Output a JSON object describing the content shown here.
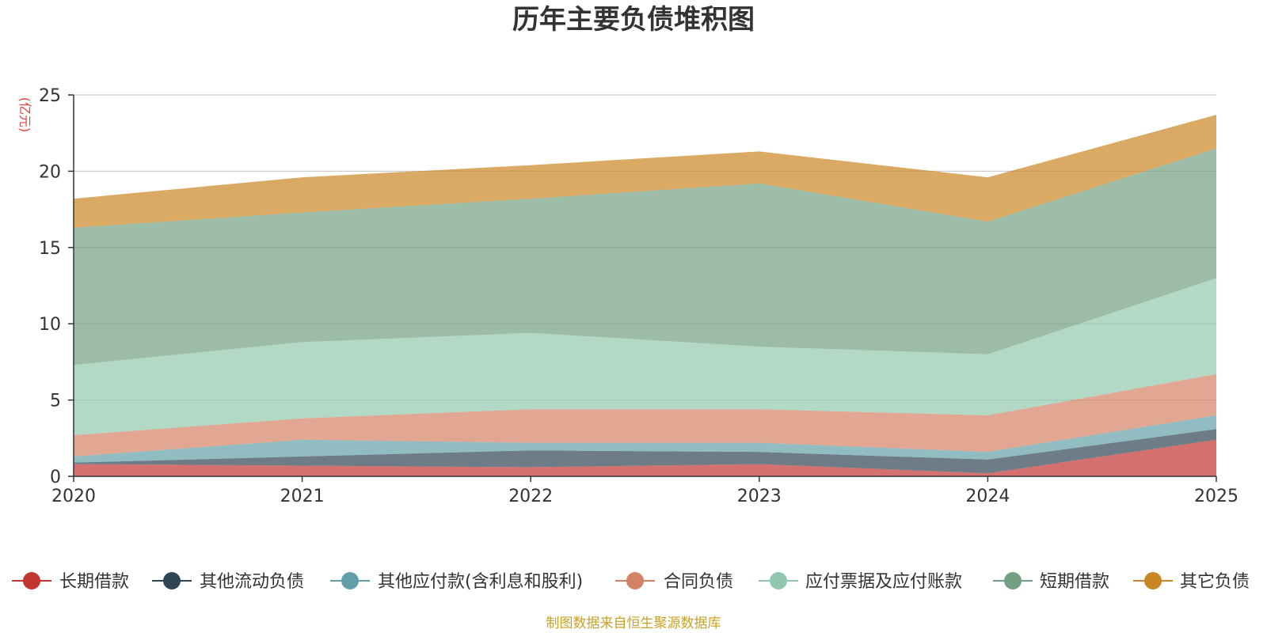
{
  "chart_data": {
    "type": "area",
    "stacked": true,
    "title": "历年主要负债堆积图",
    "ylabel": "(亿元)",
    "xlabel": "",
    "x": [
      "2020",
      "2021",
      "2022",
      "2023",
      "2024",
      "2025"
    ],
    "ylim": [
      0,
      25
    ],
    "yticks": [
      "0",
      "5",
      "10",
      "15",
      "20",
      "25"
    ],
    "grid": true,
    "legend_position": "bottom",
    "series": [
      {
        "name": "长期借款",
        "color": "#c23531",
        "values": [
          0.8,
          0.7,
          0.6,
          0.8,
          0.2,
          2.4
        ]
      },
      {
        "name": "其他流动负债",
        "color": "#2f4554",
        "values": [
          0.1,
          0.6,
          1.1,
          0.8,
          0.9,
          0.7
        ]
      },
      {
        "name": "其他应付款(含利息和股利)",
        "color": "#61a0a8",
        "values": [
          0.4,
          1.1,
          0.5,
          0.6,
          0.5,
          0.9
        ]
      },
      {
        "name": "合同负债",
        "color": "#d48265",
        "values": [
          1.4,
          1.4,
          2.2,
          2.2,
          2.4,
          2.7
        ]
      },
      {
        "name": "应付票据及应付账款",
        "color": "#91c7ae",
        "values": [
          4.6,
          5.0,
          5.0,
          4.1,
          4.0,
          6.3
        ]
      },
      {
        "name": "短期借款",
        "color": "#749f83",
        "values": [
          9.0,
          8.5,
          8.8,
          10.7,
          8.7,
          8.5
        ]
      },
      {
        "name": "其它负债",
        "color": "#ca8622",
        "values": [
          1.9,
          2.3,
          2.2,
          2.1,
          2.9,
          2.2
        ]
      }
    ]
  },
  "footer": {
    "source": "制图数据来自恒生聚源数据库"
  }
}
